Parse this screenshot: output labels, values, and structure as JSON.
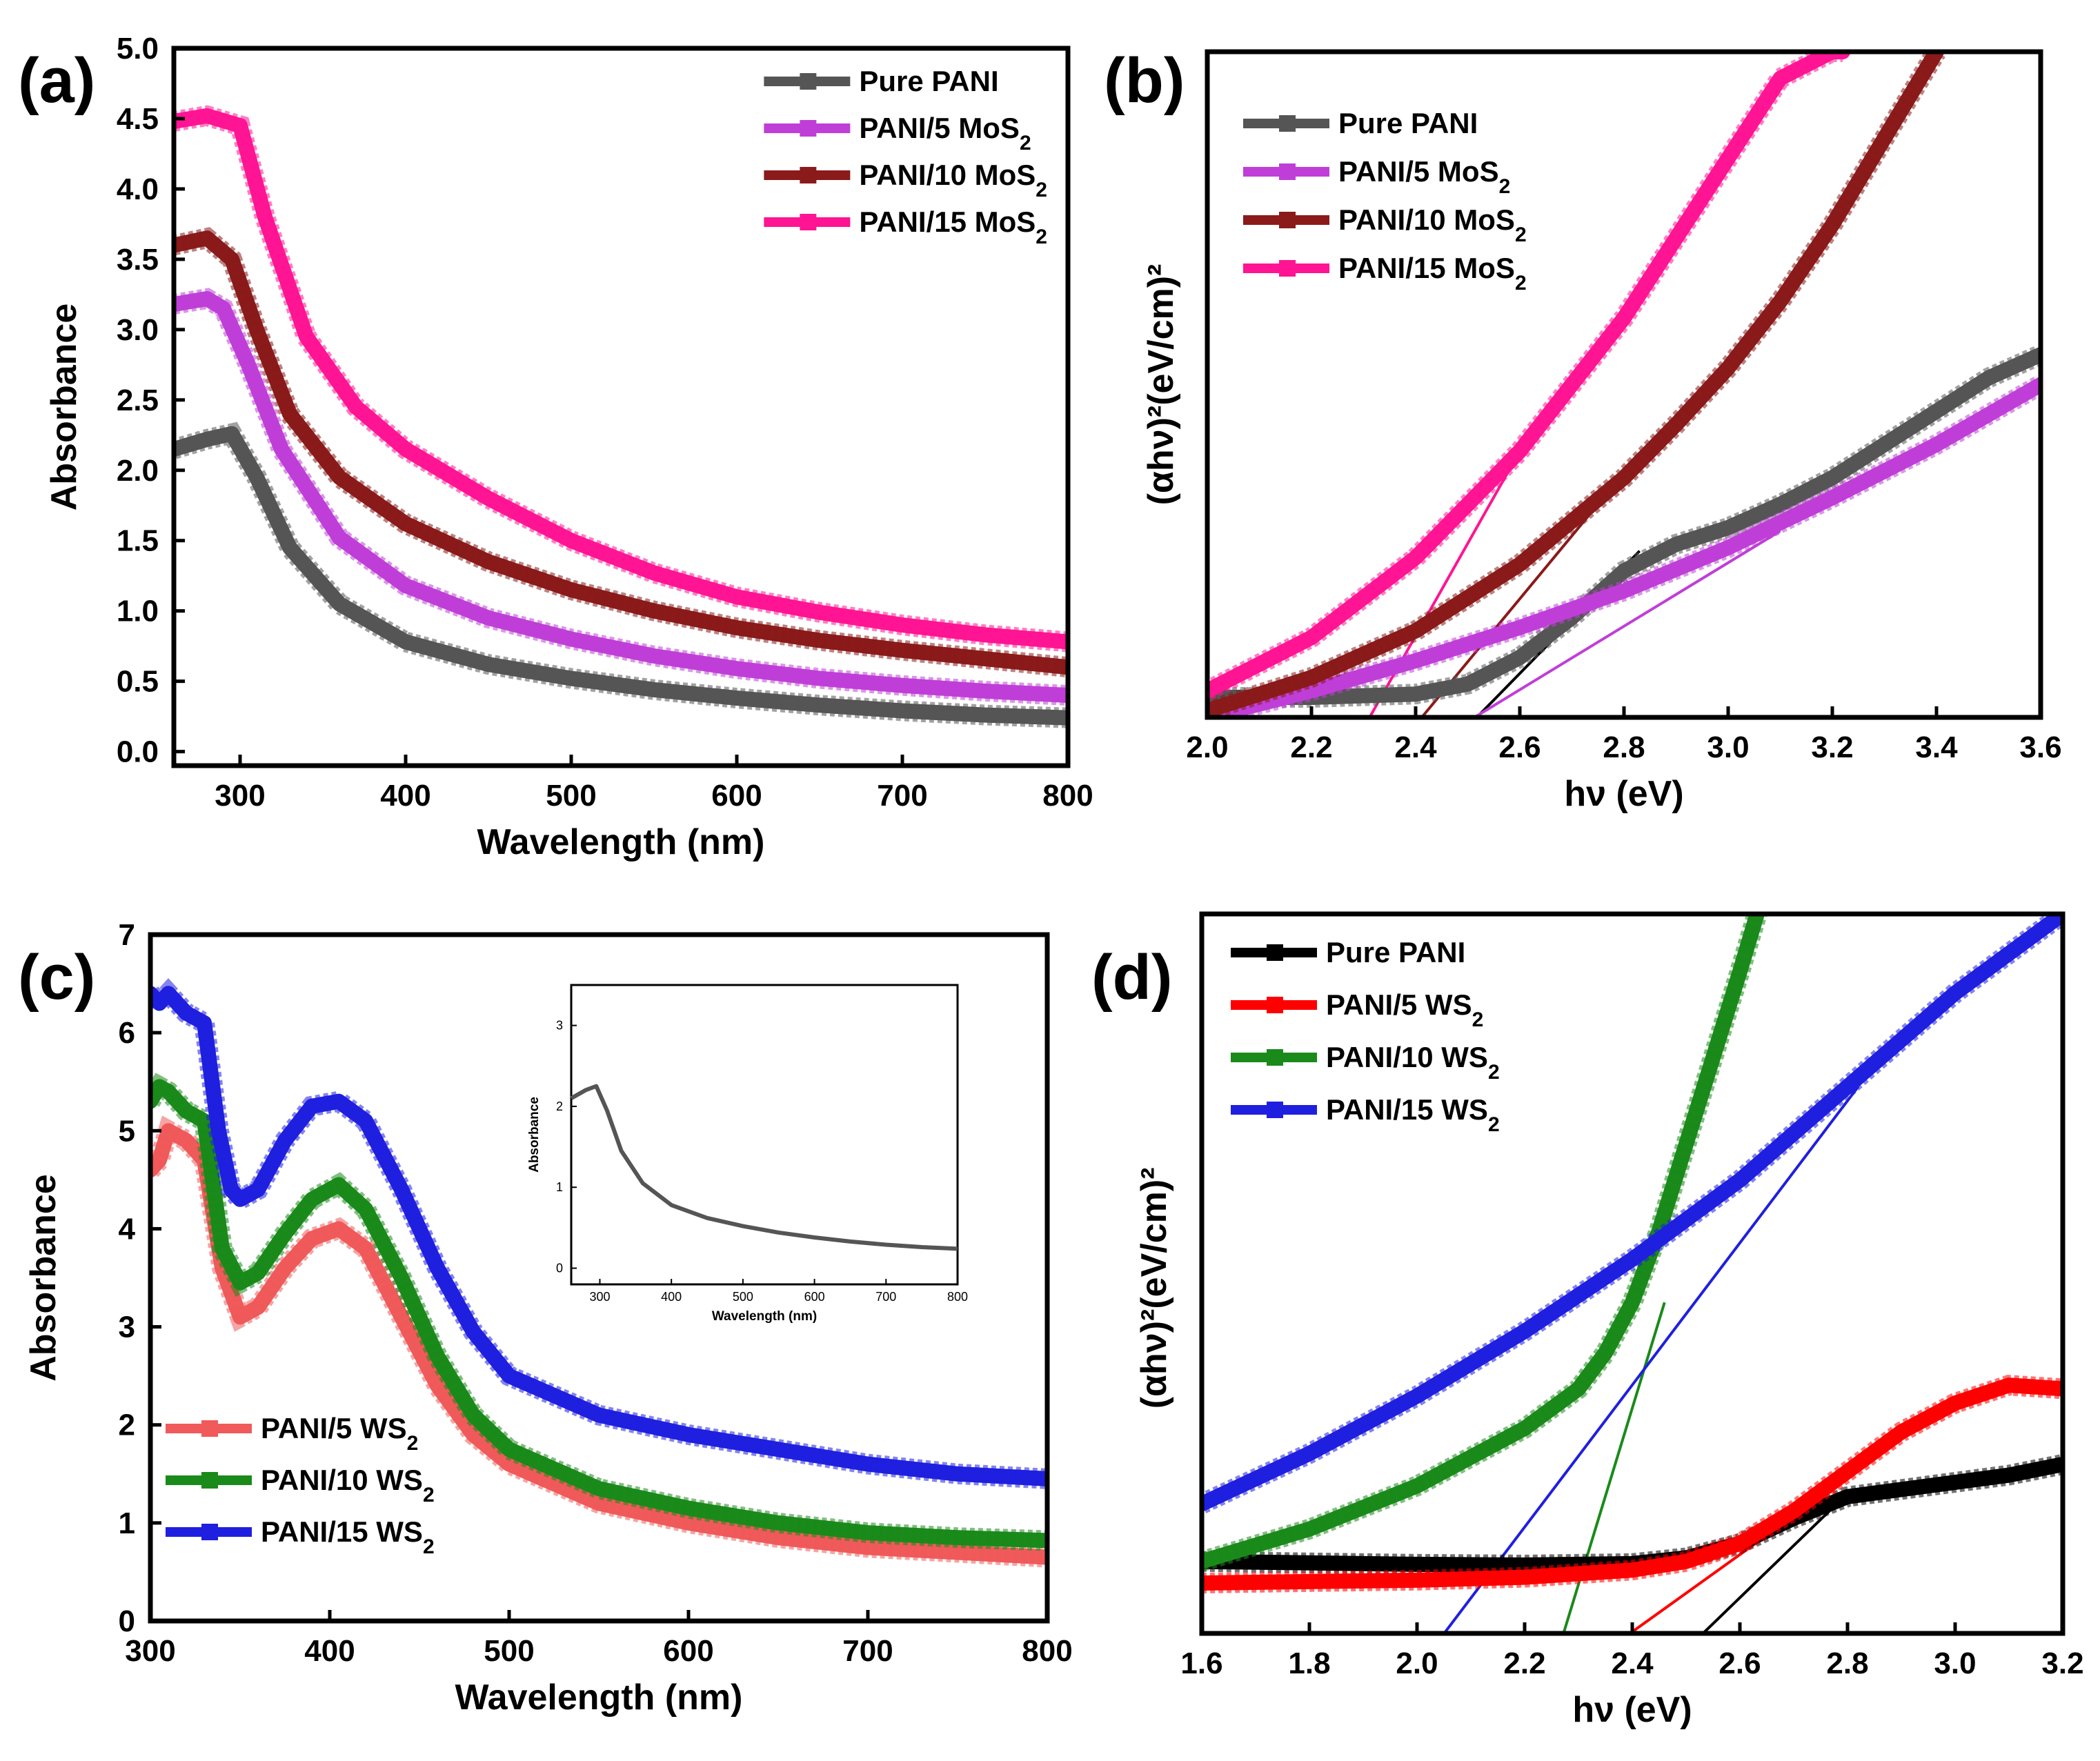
{
  "chart_data": [
    {
      "id": "a",
      "panel_label": "(a)",
      "type": "line",
      "xlabel": "Wavelength (nm)",
      "ylabel": "Absorbance",
      "xlim": [
        260,
        800
      ],
      "ylim": [
        -0.1,
        5.0
      ],
      "xticks": [
        300,
        400,
        500,
        600,
        700,
        800
      ],
      "xtick_labels": [
        "300",
        "400",
        "500",
        "600",
        "700",
        "800"
      ],
      "yticks": [
        0,
        0.5,
        1,
        1.5,
        2,
        2.5,
        3,
        3.5,
        4,
        4.5,
        5
      ],
      "ytick_labels": [
        "0.0",
        "0.5",
        "1.0",
        "1.5",
        "2.0",
        "2.5",
        "3.0",
        "3.5",
        "4.0",
        "4.5",
        "5.0"
      ],
      "legend_position": "top-right",
      "series": [
        {
          "name": "Pure PANI",
          "legend": [
            {
              "t": "Pure PANI"
            }
          ],
          "color": "#555555",
          "marker": "square",
          "x": [
            260,
            280,
            295,
            310,
            330,
            360,
            400,
            450,
            500,
            550,
            600,
            650,
            700,
            750,
            800
          ],
          "y": [
            2.15,
            2.22,
            2.26,
            1.95,
            1.45,
            1.05,
            0.78,
            0.62,
            0.52,
            0.44,
            0.38,
            0.33,
            0.29,
            0.26,
            0.24
          ]
        },
        {
          "name": "PANI/5 MoS2",
          "legend": [
            {
              "t": "PANI/5 MoS"
            },
            {
              "t": "2",
              "sub": true
            }
          ],
          "color": "#c03ed8",
          "marker": "circle",
          "x": [
            260,
            280,
            290,
            305,
            325,
            360,
            400,
            450,
            500,
            550,
            600,
            650,
            700,
            750,
            800
          ],
          "y": [
            3.18,
            3.22,
            3.15,
            2.75,
            2.15,
            1.52,
            1.18,
            0.95,
            0.8,
            0.68,
            0.59,
            0.52,
            0.47,
            0.43,
            0.4
          ]
        },
        {
          "name": "PANI/10 MoS2",
          "legend": [
            {
              "t": "PANI/10 MoS"
            },
            {
              "t": "2",
              "sub": true
            }
          ],
          "color": "#8b1a1a",
          "marker": "triangle",
          "x": [
            260,
            280,
            295,
            310,
            330,
            360,
            400,
            450,
            500,
            550,
            600,
            650,
            700,
            750,
            800
          ],
          "y": [
            3.6,
            3.65,
            3.5,
            3.0,
            2.4,
            1.95,
            1.62,
            1.35,
            1.15,
            1.0,
            0.88,
            0.79,
            0.72,
            0.66,
            0.6
          ]
        },
        {
          "name": "PANI/15 MoS2",
          "legend": [
            {
              "t": "PANI/15 MoS"
            },
            {
              "t": "2",
              "sub": true
            }
          ],
          "color": "#ff1493",
          "marker": "triangle-down",
          "x": [
            260,
            280,
            300,
            315,
            340,
            370,
            400,
            450,
            500,
            550,
            600,
            650,
            700,
            750,
            800
          ],
          "y": [
            4.48,
            4.52,
            4.45,
            3.8,
            2.95,
            2.45,
            2.15,
            1.8,
            1.5,
            1.27,
            1.1,
            0.99,
            0.9,
            0.83,
            0.78
          ]
        }
      ]
    },
    {
      "id": "b",
      "panel_label": "(b)",
      "type": "line",
      "xlabel": "hν (eV)",
      "ylabel": "(αhν)²(eV/cm)²",
      "xlim": [
        2.0,
        3.6
      ],
      "ylim": [
        0,
        10
      ],
      "xticks": [
        2.0,
        2.2,
        2.4,
        2.6,
        2.8,
        3.0,
        3.2,
        3.4,
        3.6
      ],
      "xtick_labels": [
        "2.0",
        "2.2",
        "2.4",
        "2.6",
        "2.8",
        "3.0",
        "3.2",
        "3.4",
        "3.6"
      ],
      "legend_position": "top-left",
      "series": [
        {
          "name": "Pure PANI",
          "legend": [
            {
              "t": "Pure PANI"
            }
          ],
          "color": "#555555",
          "x": [
            2.0,
            2.2,
            2.4,
            2.5,
            2.6,
            2.7,
            2.8,
            2.9,
            3.0,
            3.1,
            3.2,
            3.3,
            3.4,
            3.5,
            3.6
          ],
          "y": [
            0.3,
            0.3,
            0.35,
            0.5,
            0.9,
            1.5,
            2.2,
            2.6,
            2.85,
            3.2,
            3.6,
            4.1,
            4.6,
            5.1,
            5.45
          ]
        },
        {
          "name": "PANI/5 MoS2",
          "legend": [
            {
              "t": "PANI/5 MoS"
            },
            {
              "t": "2",
              "sub": true
            }
          ],
          "color": "#c03ed8",
          "x": [
            2.0,
            2.2,
            2.4,
            2.6,
            2.8,
            3.0,
            3.2,
            3.4,
            3.6
          ],
          "y": [
            0.0,
            0.4,
            0.85,
            1.35,
            1.9,
            2.55,
            3.3,
            4.1,
            5.0
          ]
        },
        {
          "name": "PANI/10 MoS2",
          "legend": [
            {
              "t": "PANI/10 MoS"
            },
            {
              "t": "2",
              "sub": true
            }
          ],
          "color": "#8b1a1a",
          "x": [
            2.0,
            2.2,
            2.4,
            2.6,
            2.8,
            2.9,
            3.0,
            3.1,
            3.2,
            3.3,
            3.4
          ],
          "y": [
            0.1,
            0.6,
            1.3,
            2.3,
            3.6,
            4.4,
            5.25,
            6.25,
            7.4,
            8.7,
            10.0
          ]
        },
        {
          "name": "PANI/15 MoS2",
          "legend": [
            {
              "t": "PANI/15 MoS"
            },
            {
              "t": "2",
              "sub": true
            }
          ],
          "color": "#ff1493",
          "x": [
            2.0,
            2.2,
            2.4,
            2.6,
            2.8,
            2.9,
            3.0,
            3.1,
            3.2,
            3.22
          ],
          "y": [
            0.4,
            1.2,
            2.4,
            4.0,
            6.0,
            7.2,
            8.4,
            9.6,
            10.0,
            10.0
          ]
        }
      ],
      "tangents": [
        {
          "name": "Pure PANI fit",
          "color": "#000000",
          "x": [
            2.48,
            2.83
          ],
          "y": [
            -0.3,
            2.5
          ]
        },
        {
          "name": "PANI/5 MoS2 fit",
          "color": "#c03ed8",
          "x": [
            2.45,
            3.1
          ],
          "y": [
            -0.3,
            2.8
          ]
        },
        {
          "name": "PANI/10 MoS2 fit",
          "color": "#8b1a1a",
          "x": [
            2.38,
            2.75
          ],
          "y": [
            -0.3,
            3.2
          ]
        },
        {
          "name": "PANI/15 MoS2 fit",
          "color": "#ff1493",
          "x": [
            2.29,
            2.6
          ],
          "y": [
            -0.3,
            4.0
          ]
        }
      ]
    },
    {
      "id": "c",
      "panel_label": "(c)",
      "type": "line",
      "xlabel": "Wavelength (nm)",
      "ylabel": "Absorbance",
      "xlim": [
        300,
        800
      ],
      "ylim": [
        0,
        7
      ],
      "xticks": [
        300,
        400,
        500,
        600,
        700,
        800
      ],
      "xtick_labels": [
        "300",
        "400",
        "500",
        "600",
        "700",
        "800"
      ],
      "yticks": [
        0,
        1,
        2,
        3,
        4,
        5,
        6,
        7
      ],
      "ytick_labels": [
        "0",
        "1",
        "2",
        "3",
        "4",
        "5",
        "6",
        "7"
      ],
      "legend_position": "bottom-left",
      "series": [
        {
          "name": "PANI/5 WS2",
          "legend": [
            {
              "t": "PANI/5 WS"
            },
            {
              "t": "2",
              "sub": true
            }
          ],
          "color": "#f05a5a",
          "x": [
            300,
            305,
            310,
            320,
            330,
            340,
            350,
            360,
            375,
            390,
            405,
            420,
            440,
            460,
            480,
            500,
            550,
            600,
            650,
            700,
            750,
            800
          ],
          "y": [
            4.6,
            4.7,
            5.0,
            4.9,
            4.7,
            3.6,
            3.1,
            3.2,
            3.6,
            3.9,
            4.0,
            3.8,
            3.1,
            2.4,
            1.9,
            1.6,
            1.2,
            1.0,
            0.85,
            0.75,
            0.7,
            0.65
          ]
        },
        {
          "name": "PANI/10 WS2",
          "legend": [
            {
              "t": "PANI/10 WS"
            },
            {
              "t": "2",
              "sub": true
            }
          ],
          "color": "#1a8a1a",
          "x": [
            300,
            305,
            310,
            320,
            330,
            340,
            350,
            360,
            375,
            390,
            405,
            420,
            440,
            460,
            480,
            500,
            550,
            600,
            650,
            700,
            750,
            800
          ],
          "y": [
            5.3,
            5.45,
            5.4,
            5.2,
            5.1,
            3.8,
            3.45,
            3.55,
            3.95,
            4.3,
            4.45,
            4.2,
            3.5,
            2.7,
            2.1,
            1.75,
            1.35,
            1.15,
            1.0,
            0.9,
            0.85,
            0.82
          ]
        },
        {
          "name": "PANI/15 WS2",
          "legend": [
            {
              "t": "PANI/15 WS"
            },
            {
              "t": "2",
              "sub": true
            }
          ],
          "color": "#1f1fe0",
          "x": [
            300,
            305,
            310,
            320,
            330,
            338,
            345,
            350,
            360,
            375,
            390,
            405,
            420,
            440,
            460,
            480,
            500,
            550,
            600,
            650,
            700,
            750,
            800
          ],
          "y": [
            6.4,
            6.3,
            6.4,
            6.2,
            6.1,
            5.0,
            4.4,
            4.3,
            4.4,
            4.9,
            5.25,
            5.3,
            5.1,
            4.4,
            3.6,
            2.95,
            2.5,
            2.1,
            1.9,
            1.75,
            1.6,
            1.5,
            1.45
          ]
        }
      ],
      "inset": {
        "xlabel": "Wavelength (nm)",
        "ylabel": "Absorbance",
        "xlim": [
          260,
          800
        ],
        "ylim": [
          -0.2,
          3.5
        ],
        "xticks": [
          300,
          400,
          500,
          600,
          700,
          800
        ],
        "xtick_labels": [
          "300",
          "400",
          "500",
          "600",
          "700",
          "800"
        ],
        "yticks": [
          0,
          1,
          2,
          3
        ],
        "ytick_labels": [
          "0",
          "1",
          "2",
          "3"
        ],
        "color": "#555555",
        "x": [
          260,
          280,
          295,
          310,
          330,
          360,
          400,
          450,
          500,
          550,
          600,
          650,
          700,
          750,
          800
        ],
        "y": [
          2.1,
          2.2,
          2.25,
          1.95,
          1.45,
          1.05,
          0.78,
          0.62,
          0.52,
          0.44,
          0.38,
          0.33,
          0.29,
          0.26,
          0.24
        ]
      }
    },
    {
      "id": "d",
      "panel_label": "(d)",
      "type": "line",
      "xlabel": "hν (eV)",
      "ylabel": "(αhν)²(eV/cm)²",
      "xlim": [
        1.6,
        3.2
      ],
      "ylim": [
        0,
        10
      ],
      "xticks": [
        1.6,
        1.8,
        2.0,
        2.2,
        2.4,
        2.6,
        2.8,
        3.0,
        3.2
      ],
      "xtick_labels": [
        "1.6",
        "1.8",
        "2.0",
        "2.2",
        "2.4",
        "2.6",
        "2.8",
        "3.0",
        "3.2"
      ],
      "legend_position": "top-left",
      "series": [
        {
          "name": "Pure PANI",
          "legend": [
            {
              "t": "Pure PANI"
            }
          ],
          "color": "#000000",
          "x": [
            1.6,
            1.8,
            2.0,
            2.2,
            2.4,
            2.5,
            2.6,
            2.7,
            2.8,
            2.9,
            3.0,
            3.1,
            3.2
          ],
          "y": [
            1.0,
            0.98,
            0.96,
            0.95,
            0.97,
            1.05,
            1.25,
            1.6,
            1.9,
            2.0,
            2.1,
            2.2,
            2.35
          ]
        },
        {
          "name": "PANI/5 WS2",
          "legend": [
            {
              "t": "PANI/5 WS"
            },
            {
              "t": "2",
              "sub": true
            }
          ],
          "color": "#ff0000",
          "x": [
            1.6,
            1.8,
            2.0,
            2.2,
            2.4,
            2.5,
            2.6,
            2.7,
            2.8,
            2.9,
            3.0,
            3.1,
            3.2
          ],
          "y": [
            0.7,
            0.72,
            0.74,
            0.78,
            0.88,
            1.0,
            1.25,
            1.7,
            2.25,
            2.8,
            3.2,
            3.45,
            3.4
          ]
        },
        {
          "name": "PANI/10 WS2",
          "legend": [
            {
              "t": "PANI/10 WS"
            },
            {
              "t": "2",
              "sub": true
            }
          ],
          "color": "#1a8a1a",
          "x": [
            1.6,
            1.8,
            2.0,
            2.2,
            2.3,
            2.35,
            2.4,
            2.45,
            2.5,
            2.55,
            2.6,
            2.64,
            2.66
          ],
          "y": [
            1.0,
            1.45,
            2.05,
            2.85,
            3.4,
            3.9,
            4.6,
            5.6,
            6.8,
            8.0,
            9.2,
            10.2,
            10.6
          ]
        },
        {
          "name": "PANI/15 WS2",
          "legend": [
            {
              "t": "PANI/15 WS"
            },
            {
              "t": "2",
              "sub": true
            }
          ],
          "color": "#1f1fe0",
          "x": [
            1.6,
            1.8,
            2.0,
            2.2,
            2.4,
            2.6,
            2.8,
            3.0,
            3.2
          ],
          "y": [
            1.8,
            2.5,
            3.3,
            4.2,
            5.2,
            6.3,
            7.6,
            8.9,
            10.0
          ]
        }
      ],
      "tangents": [
        {
          "name": "Pure PANI fit",
          "color": "#000000",
          "x": [
            2.49,
            2.78
          ],
          "y": [
            -0.3,
            1.8
          ]
        },
        {
          "name": "PANI/5 WS2 fit",
          "color": "#ff0000",
          "x": [
            2.34,
            2.75
          ],
          "y": [
            -0.3,
            1.9
          ]
        },
        {
          "name": "PANI/10 WS2 fit",
          "color": "#1a8a1a",
          "x": [
            2.26,
            2.46
          ],
          "y": [
            -0.3,
            4.6
          ]
        },
        {
          "name": "PANI/15 WS2 fit",
          "color": "#1f1fe0",
          "x": [
            2.02,
            2.82
          ],
          "y": [
            -0.3,
            7.6
          ]
        }
      ]
    }
  ]
}
